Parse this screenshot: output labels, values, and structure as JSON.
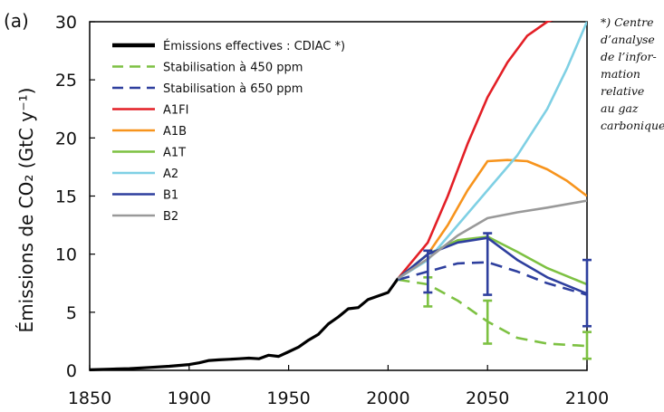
{
  "chart_data": {
    "type": "line",
    "panel_label": "(a)",
    "ylabel": "Émissions de CO₂ (GtC y⁻¹)",
    "xlabel": "",
    "xlim": [
      1850,
      2100
    ],
    "ylim": [
      0,
      30
    ],
    "x_ticks": [
      "1850",
      "1900",
      "1950",
      "2000",
      "2050",
      "2100"
    ],
    "y_ticks": [
      "0",
      "5",
      "10",
      "15",
      "20",
      "25",
      "30"
    ],
    "grid": false,
    "legend_position": "top-left",
    "footnote": [
      "*) Centre",
      "d’analyse",
      "de l’infor-",
      "mation",
      "relative",
      "au gaz",
      "carbonique"
    ],
    "series": [
      {
        "name": "Émissions effectives : CDIAC *)",
        "color": "#000000",
        "dash": "solid",
        "x": [
          1850,
          1860,
          1870,
          1880,
          1890,
          1900,
          1905,
          1910,
          1915,
          1920,
          1925,
          1930,
          1935,
          1940,
          1945,
          1950,
          1955,
          1960,
          1965,
          1970,
          1975,
          1980,
          1985,
          1990,
          1995,
          2000,
          2005
        ],
        "y": [
          0.05,
          0.1,
          0.15,
          0.25,
          0.35,
          0.5,
          0.65,
          0.85,
          0.9,
          0.95,
          1.0,
          1.05,
          1.0,
          1.3,
          1.2,
          1.6,
          2.0,
          2.6,
          3.1,
          4.0,
          4.6,
          5.3,
          5.4,
          6.1,
          6.4,
          6.7,
          7.9
        ]
      },
      {
        "name": "Stabilisation à 450 ppm",
        "color": "#7dc142",
        "dash": "dashed",
        "x": [
          2005,
          2020,
          2035,
          2050,
          2065,
          2080,
          2100
        ],
        "y": [
          7.8,
          7.4,
          6.0,
          4.2,
          2.8,
          2.3,
          2.1
        ],
        "error_bars": [
          {
            "x": 2020,
            "low": 5.5,
            "high": 8.0
          },
          {
            "x": 2050,
            "low": 2.3,
            "high": 6.0
          },
          {
            "x": 2100,
            "low": 1.0,
            "high": 3.3
          }
        ]
      },
      {
        "name": "Stabilisation à 650 ppm",
        "color": "#2e3f9e",
        "dash": "dashed",
        "x": [
          2005,
          2020,
          2035,
          2050,
          2065,
          2080,
          2100
        ],
        "y": [
          7.8,
          8.5,
          9.2,
          9.3,
          8.5,
          7.5,
          6.5
        ],
        "error_bars": [
          {
            "x": 2020,
            "low": 6.7,
            "high": 10.3
          },
          {
            "x": 2050,
            "low": 6.5,
            "high": 11.8
          },
          {
            "x": 2100,
            "low": 3.8,
            "high": 9.5
          }
        ]
      },
      {
        "name": "A1FI",
        "color": "#e31f26",
        "dash": "solid",
        "x": [
          2005,
          2020,
          2030,
          2040,
          2050,
          2060,
          2070,
          2080,
          2085
        ],
        "y": [
          7.9,
          11.0,
          15.0,
          19.5,
          23.5,
          26.5,
          28.8,
          30.0,
          30.3
        ]
      },
      {
        "name": "A1B",
        "color": "#f7941d",
        "dash": "solid",
        "x": [
          2005,
          2020,
          2030,
          2040,
          2050,
          2060,
          2070,
          2080,
          2090,
          2100
        ],
        "y": [
          7.9,
          10.0,
          12.5,
          15.5,
          18.0,
          18.1,
          18.0,
          17.3,
          16.3,
          15.0
        ]
      },
      {
        "name": "A1T",
        "color": "#7dc142",
        "dash": "solid",
        "x": [
          2005,
          2020,
          2035,
          2050,
          2065,
          2080,
          2100
        ],
        "y": [
          7.9,
          10.0,
          11.2,
          11.5,
          10.2,
          8.8,
          7.4
        ]
      },
      {
        "name": "A2",
        "color": "#7fd0e4",
        "dash": "solid",
        "x": [
          2005,
          2020,
          2035,
          2050,
          2065,
          2080,
          2090,
          2100
        ],
        "y": [
          7.9,
          9.5,
          12.5,
          15.5,
          18.5,
          22.5,
          26.0,
          30.0
        ]
      },
      {
        "name": "B1",
        "color": "#2e3f9e",
        "dash": "solid",
        "x": [
          2005,
          2020,
          2035,
          2050,
          2065,
          2080,
          2100
        ],
        "y": [
          7.9,
          10.0,
          11.0,
          11.4,
          9.5,
          8.0,
          6.6
        ]
      },
      {
        "name": "B2",
        "color": "#999999",
        "dash": "solid",
        "x": [
          2005,
          2020,
          2035,
          2050,
          2065,
          2080,
          2100
        ],
        "y": [
          7.9,
          9.6,
          11.6,
          13.1,
          13.6,
          14.0,
          14.6
        ]
      }
    ]
  }
}
